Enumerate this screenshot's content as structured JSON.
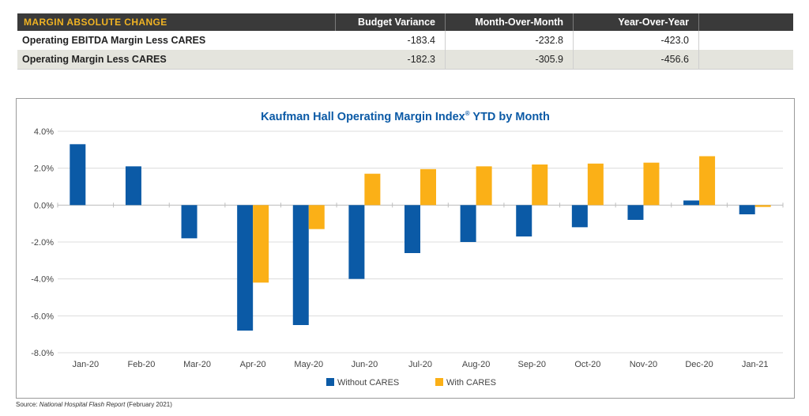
{
  "table": {
    "header": {
      "title": "MARGIN ABSOLUTE CHANGE",
      "columns": [
        "Budget Variance",
        "Month-Over-Month",
        "Year-Over-Year"
      ]
    },
    "rows": [
      {
        "label": "Operating EBITDA Margin Less CARES",
        "values": [
          "-183.4",
          "-232.8",
          "-423.0"
        ]
      },
      {
        "label": "Operating Margin Less CARES",
        "values": [
          "-182.3",
          "-305.9",
          "-456.6"
        ]
      }
    ]
  },
  "chart_data": {
    "type": "bar",
    "title": "Kaufman Hall Operating Margin Index",
    "title_superscript": "®",
    "title_suffix": " YTD by Month",
    "categories": [
      "Jan-20",
      "Feb-20",
      "Mar-20",
      "Apr-20",
      "May-20",
      "Jun-20",
      "Jul-20",
      "Aug-20",
      "Sep-20",
      "Oct-20",
      "Nov-20",
      "Dec-20",
      "Jan-21"
    ],
    "series": [
      {
        "name": "Without CARES",
        "color": "#0b5aa6",
        "values": [
          3.3,
          2.1,
          -1.8,
          -6.8,
          -6.5,
          -4.0,
          -2.6,
          -2.0,
          -1.7,
          -1.2,
          -0.8,
          0.25,
          -0.5
        ]
      },
      {
        "name": "With CARES",
        "color": "#fbb017",
        "values": [
          null,
          null,
          null,
          -4.2,
          -1.3,
          1.7,
          1.95,
          2.1,
          2.2,
          2.25,
          2.3,
          2.65,
          -0.1
        ]
      }
    ],
    "yticks": [
      "4.0%",
      "2.0%",
      "0.0%",
      "-2.0%",
      "-4.0%",
      "-6.0%",
      "-8.0%"
    ],
    "ylim": [
      -8,
      4
    ],
    "grid": true,
    "legend": "bottom-center"
  },
  "source": {
    "prefix": "Source: ",
    "publication": "National Hospital Flash Report",
    "suffix": " (February 2021)"
  },
  "colors": {
    "title": "#0b5aa6",
    "header_bg": "#3a3a3a",
    "header_accent": "#f0b323"
  }
}
